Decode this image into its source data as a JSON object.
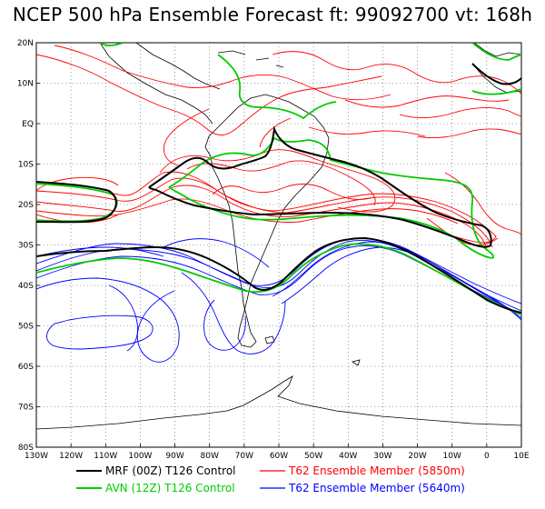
{
  "title": "NCEP 500 hPa Ensemble Forecast  ft: 99092700 vt: 168h",
  "map": {
    "lon_range": [
      -130,
      10
    ],
    "lat_range": [
      -80,
      20
    ],
    "lon_ticks": [
      "130W",
      "120W",
      "110W",
      "100W",
      "90W",
      "80W",
      "70W",
      "60W",
      "50W",
      "40W",
      "30W",
      "20W",
      "10W",
      "0",
      "10E"
    ],
    "lat_ticks": [
      "20N",
      "10N",
      "EQ",
      "10S",
      "20S",
      "30S",
      "40S",
      "50S",
      "60S",
      "70S",
      "80S"
    ],
    "grid": "dotted 10°"
  },
  "legend": [
    {
      "label": "MRF (00Z) T126 Control",
      "color": "#000000"
    },
    {
      "label": "AVN (12Z) T126 Control",
      "color": "#00cc00"
    },
    {
      "label": "T62 Ensemble Member (5850m)",
      "color": "#ff0000"
    },
    {
      "label": "T62 Ensemble Member (5640m)",
      "color": "#0000ff"
    }
  ],
  "colors": {
    "mrf": "#000000",
    "avn": "#00cc00",
    "red": "#ff0000",
    "blue": "#0000ff",
    "coast": "#000000"
  }
}
